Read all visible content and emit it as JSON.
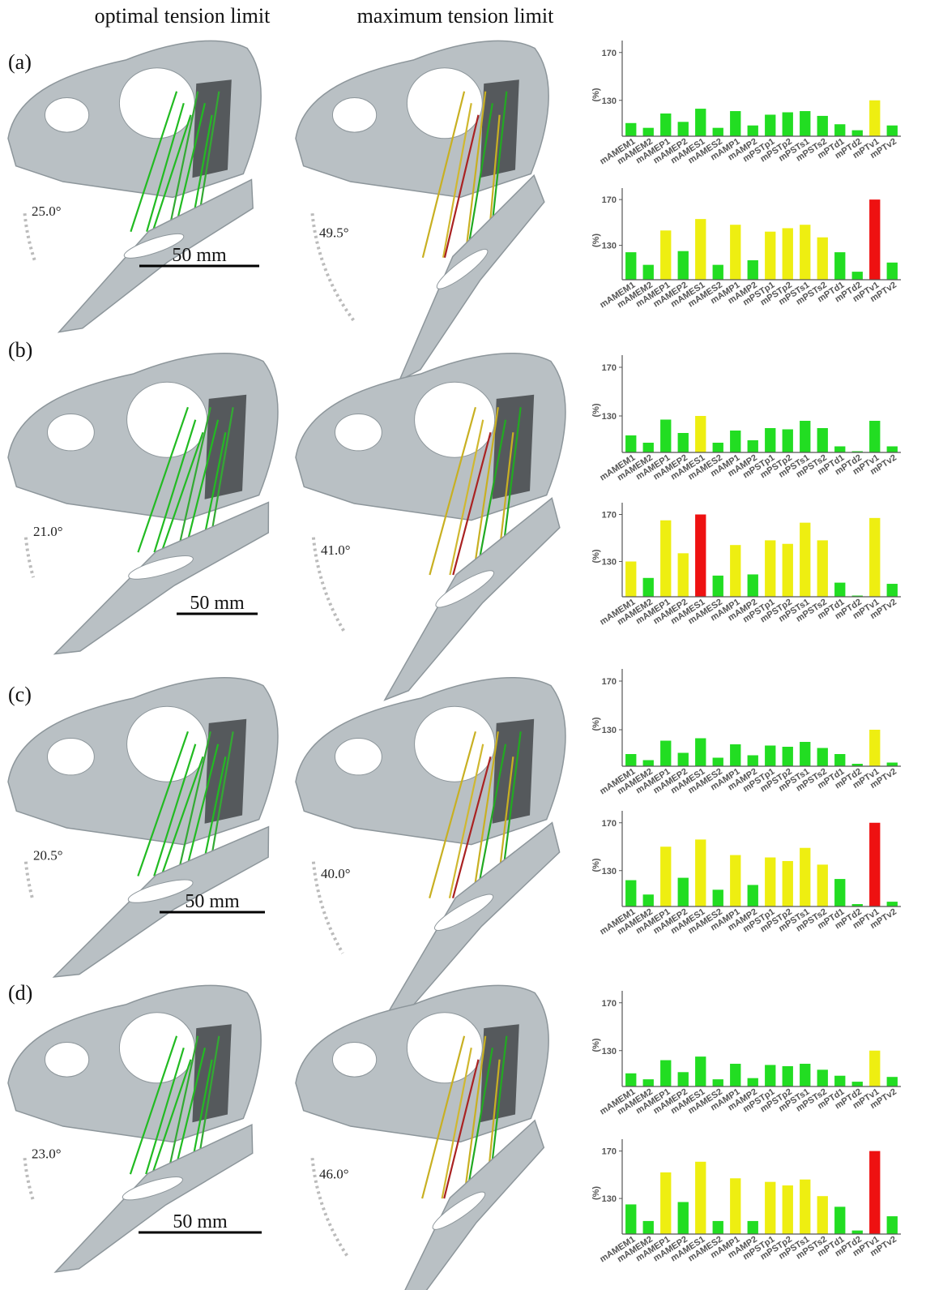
{
  "header": {
    "optimal": "optimal tension limit",
    "maximum": "maximum tension limit"
  },
  "panels": [
    {
      "label": "(a)",
      "optimal_angle": "25.0°",
      "maximum_angle": "49.5°",
      "scale_bar": "50 mm"
    },
    {
      "label": "(b)",
      "optimal_angle": "21.0°",
      "maximum_angle": "41.0°",
      "scale_bar": "50 mm"
    },
    {
      "label": "(c)",
      "optimal_angle": "20.5°",
      "maximum_angle": "40.0°",
      "scale_bar": "50 mm"
    },
    {
      "label": "(d)",
      "optimal_angle": "23.0°",
      "maximum_angle": "46.0°",
      "scale_bar": "50 mm"
    }
  ],
  "chart_data": [
    {
      "type": "bar",
      "y_label": "(%)",
      "ylim": [
        100,
        180
      ],
      "yticks": [
        130,
        170
      ],
      "categories": [
        "mAMEM1",
        "mAMEM2",
        "mAMEP1",
        "mAMEP2",
        "mAMES1",
        "mAMES2",
        "mAMP1",
        "mAMP2",
        "mPSTp1",
        "mPSTp2",
        "mPSTs1",
        "mPSTs2",
        "mPTd1",
        "mPTd2",
        "mPTv1",
        "mPTv2"
      ],
      "values": [
        111,
        107,
        119,
        112,
        123,
        107,
        121,
        109,
        118,
        120,
        121,
        117,
        110,
        105,
        130,
        109
      ],
      "colors": [
        "#22dd22",
        "#22dd22",
        "#22dd22",
        "#22dd22",
        "#22dd22",
        "#22dd22",
        "#22dd22",
        "#22dd22",
        "#22dd22",
        "#22dd22",
        "#22dd22",
        "#22dd22",
        "#22dd22",
        "#22dd22",
        "#eeee11",
        "#22dd22"
      ]
    },
    {
      "type": "bar",
      "y_label": "(%)",
      "ylim": [
        100,
        180
      ],
      "yticks": [
        130,
        170
      ],
      "categories": [
        "mAMEM1",
        "mAMEM2",
        "mAMEP1",
        "mAMEP2",
        "mAMES1",
        "mAMES2",
        "mAMP1",
        "mAMP2",
        "mPSTp1",
        "mPSTp2",
        "mPSTs1",
        "mPSTs2",
        "mPTd1",
        "mPTd2",
        "mPTv1",
        "mPTv2"
      ],
      "values": [
        124,
        113,
        143,
        125,
        153,
        113,
        148,
        117,
        142,
        145,
        148,
        137,
        124,
        107,
        170,
        115
      ],
      "colors": [
        "#22dd22",
        "#22dd22",
        "#eeee11",
        "#22dd22",
        "#eeee11",
        "#22dd22",
        "#eeee11",
        "#22dd22",
        "#eeee11",
        "#eeee11",
        "#eeee11",
        "#eeee11",
        "#22dd22",
        "#22dd22",
        "#ee1111",
        "#22dd22"
      ]
    },
    {
      "type": "bar",
      "y_label": "(%)",
      "ylim": [
        100,
        180
      ],
      "yticks": [
        130,
        170
      ],
      "categories": [
        "mAMEM1",
        "mAMEM2",
        "mAMEP1",
        "mAMEP2",
        "mAMES1",
        "mAMES2",
        "mAMP1",
        "mAMP2",
        "mPSTp1",
        "mPSTp2",
        "mPSTs1",
        "mPSTs2",
        "mPTd1",
        "mPTd2",
        "mPTv1",
        "mPTv2"
      ],
      "values": [
        114,
        108,
        127,
        116,
        130,
        108,
        118,
        110,
        120,
        119,
        126,
        120,
        105,
        101,
        126,
        105
      ],
      "colors": [
        "#22dd22",
        "#22dd22",
        "#22dd22",
        "#22dd22",
        "#eeee11",
        "#22dd22",
        "#22dd22",
        "#22dd22",
        "#22dd22",
        "#22dd22",
        "#22dd22",
        "#22dd22",
        "#22dd22",
        "#22dd22",
        "#22dd22",
        "#22dd22"
      ]
    },
    {
      "type": "bar",
      "y_label": "(%)",
      "ylim": [
        100,
        180
      ],
      "yticks": [
        130,
        170
      ],
      "categories": [
        "mAMEM1",
        "mAMEM2",
        "mAMEP1",
        "mAMEP2",
        "mAMES1",
        "mAMES2",
        "mAMP1",
        "mAMP2",
        "mPSTp1",
        "mPSTp2",
        "mPSTs1",
        "mPSTs2",
        "mPTd1",
        "mPTd2",
        "mPTv1",
        "mPTv2"
      ],
      "values": [
        130,
        116,
        165,
        137,
        170,
        118,
        144,
        119,
        148,
        145,
        163,
        148,
        112,
        101,
        167,
        111
      ],
      "colors": [
        "#eeee11",
        "#22dd22",
        "#eeee11",
        "#eeee11",
        "#ee1111",
        "#22dd22",
        "#eeee11",
        "#22dd22",
        "#eeee11",
        "#eeee11",
        "#eeee11",
        "#eeee11",
        "#22dd22",
        "#22dd22",
        "#eeee11",
        "#22dd22"
      ]
    },
    {
      "type": "bar",
      "y_label": "(%)",
      "ylim": [
        100,
        180
      ],
      "yticks": [
        130,
        170
      ],
      "categories": [
        "mAMEM1",
        "mAMEM2",
        "mAMEP1",
        "mAMEP2",
        "mAMES1",
        "mAMES2",
        "mAMP1",
        "mAMP2",
        "mPSTp1",
        "mPSTp2",
        "mPSTs1",
        "mPSTs2",
        "mPTd1",
        "mPTd2",
        "mPTv1",
        "mPTv2"
      ],
      "values": [
        110,
        105,
        121,
        111,
        123,
        107,
        118,
        109,
        117,
        116,
        120,
        115,
        110,
        102,
        130,
        103
      ],
      "colors": [
        "#22dd22",
        "#22dd22",
        "#22dd22",
        "#22dd22",
        "#22dd22",
        "#22dd22",
        "#22dd22",
        "#22dd22",
        "#22dd22",
        "#22dd22",
        "#22dd22",
        "#22dd22",
        "#22dd22",
        "#22dd22",
        "#eeee11",
        "#22dd22"
      ]
    },
    {
      "type": "bar",
      "y_label": "(%)",
      "ylim": [
        100,
        180
      ],
      "yticks": [
        130,
        170
      ],
      "categories": [
        "mAMEM1",
        "mAMEM2",
        "mAMEP1",
        "mAMEP2",
        "mAMES1",
        "mAMES2",
        "mAMP1",
        "mAMP2",
        "mPSTp1",
        "mPSTp2",
        "mPSTs1",
        "mPSTs2",
        "mPTd1",
        "mPTd2",
        "mPTv1",
        "mPTv2"
      ],
      "values": [
        122,
        110,
        150,
        124,
        156,
        114,
        143,
        118,
        141,
        138,
        149,
        135,
        123,
        102,
        170,
        104
      ],
      "colors": [
        "#22dd22",
        "#22dd22",
        "#eeee11",
        "#22dd22",
        "#eeee11",
        "#22dd22",
        "#eeee11",
        "#22dd22",
        "#eeee11",
        "#eeee11",
        "#eeee11",
        "#eeee11",
        "#22dd22",
        "#22dd22",
        "#ee1111",
        "#22dd22"
      ]
    },
    {
      "type": "bar",
      "y_label": "(%)",
      "ylim": [
        100,
        180
      ],
      "yticks": [
        130,
        170
      ],
      "categories": [
        "mAMEM1",
        "mAMEM2",
        "mAMEP1",
        "mAMEP2",
        "mAMES1",
        "mAMES2",
        "mAMP1",
        "mAMP2",
        "mPSTp1",
        "mPSTp2",
        "mPSTs1",
        "mPSTs2",
        "mPTd1",
        "mPTd2",
        "mPTv1",
        "mPTv2"
      ],
      "values": [
        111,
        106,
        122,
        112,
        125,
        106,
        119,
        107,
        118,
        117,
        119,
        114,
        109,
        104,
        130,
        108
      ],
      "colors": [
        "#22dd22",
        "#22dd22",
        "#22dd22",
        "#22dd22",
        "#22dd22",
        "#22dd22",
        "#22dd22",
        "#22dd22",
        "#22dd22",
        "#22dd22",
        "#22dd22",
        "#22dd22",
        "#22dd22",
        "#22dd22",
        "#eeee11",
        "#22dd22"
      ]
    },
    {
      "type": "bar",
      "y_label": "(%)",
      "ylim": [
        100,
        180
      ],
      "yticks": [
        130,
        170
      ],
      "categories": [
        "mAMEM1",
        "mAMEM2",
        "mAMEP1",
        "mAMEP2",
        "mAMES1",
        "mAMES2",
        "mAMP1",
        "mAMP2",
        "mPSTp1",
        "mPSTp2",
        "mPSTs1",
        "mPSTs2",
        "mPTd1",
        "mPTd2",
        "mPTv1",
        "mPTv2"
      ],
      "values": [
        125,
        111,
        152,
        127,
        161,
        111,
        147,
        111,
        144,
        141,
        146,
        132,
        123,
        103,
        170,
        115
      ],
      "colors": [
        "#22dd22",
        "#22dd22",
        "#eeee11",
        "#22dd22",
        "#eeee11",
        "#22dd22",
        "#eeee11",
        "#22dd22",
        "#eeee11",
        "#eeee11",
        "#eeee11",
        "#eeee11",
        "#22dd22",
        "#22dd22",
        "#ee1111",
        "#22dd22"
      ]
    }
  ]
}
